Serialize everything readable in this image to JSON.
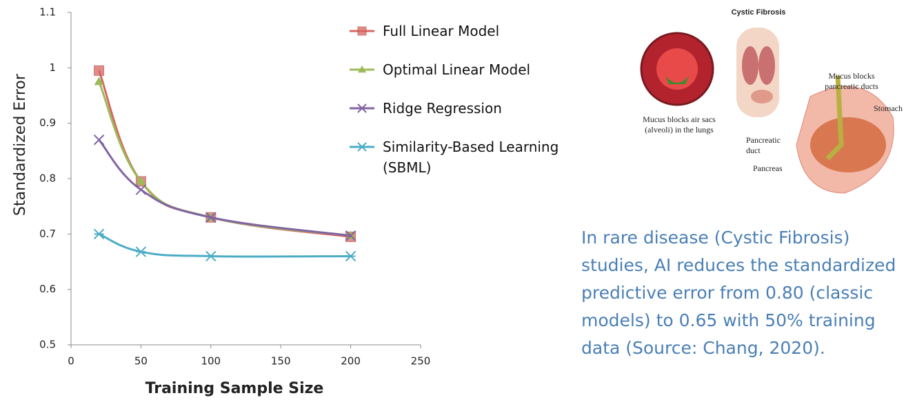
{
  "chart_data": {
    "type": "line",
    "x_label": "Training Sample Size",
    "y_label": "Standardized Error",
    "x": [
      20,
      50,
      100,
      200
    ],
    "series": [
      {
        "name": "Full Linear Model",
        "color": "#d9655f",
        "marker": "square",
        "values": [
          0.995,
          0.795,
          0.73,
          0.695
        ]
      },
      {
        "name": "Optimal Linear Model",
        "color": "#9bbb59",
        "marker": "triangle",
        "values": [
          0.975,
          0.795,
          0.73,
          0.697
        ]
      },
      {
        "name": "Ridge Regression",
        "color": "#8064a2",
        "marker": "cross",
        "values": [
          0.87,
          0.78,
          0.73,
          0.697
        ]
      },
      {
        "name": "Similarity-Based Learning (SBML)",
        "color": "#4bacc6",
        "marker": "star",
        "values": [
          0.7,
          0.668,
          0.66,
          0.66
        ]
      }
    ],
    "xlim": [
      0,
      250
    ],
    "xticks": [
      0,
      50,
      100,
      150,
      200,
      250
    ],
    "ylim": [
      0.5,
      1.1
    ],
    "yticks": [
      0.5,
      0.6,
      0.7,
      0.8,
      0.9,
      1,
      1.1
    ],
    "grid": false
  },
  "illustration": {
    "title": "Cystic Fibrosis",
    "labels": [
      "Mucus blocks air sacs (alveoli) in the lungs",
      "Mucus blocks pancreatic ducts",
      "Stomach",
      "Pancreatic duct",
      "Pancreas"
    ]
  },
  "caption": "In rare disease (Cystic Fibrosis) studies, AI reduces the standardized predictive error from 0.80 (classic models) to 0.65 with 50% training data (Source: Chang, 2020)."
}
